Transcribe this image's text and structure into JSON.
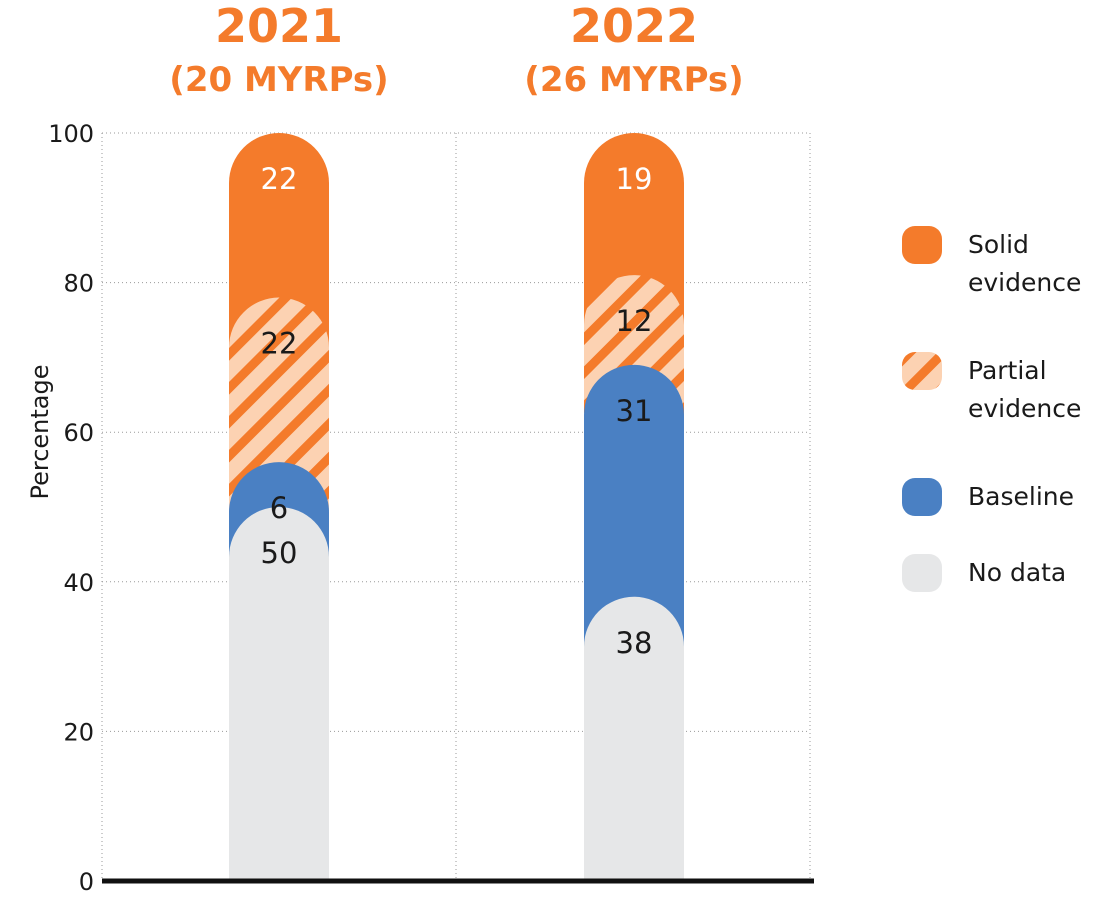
{
  "chart_data": {
    "type": "bar",
    "stacked": true,
    "ylabel": "Percentage",
    "ylim": [
      0,
      100
    ],
    "yticks": [
      0,
      20,
      40,
      60,
      80,
      100
    ],
    "grid": true,
    "legend_position": "right",
    "categories": [
      {
        "year": "2021",
        "subtitle": "(20 MYRPs)"
      },
      {
        "year": "2022",
        "subtitle": "(26 MYRPs)"
      }
    ],
    "series": [
      {
        "key": "nodata",
        "name": "No data",
        "color": "#e6e7e8",
        "label_color": "#1a1a1a",
        "values": [
          50,
          38
        ]
      },
      {
        "key": "baseline",
        "name": "Baseline",
        "color": "#4a80c3",
        "label_color": "#1a1a1a",
        "values": [
          6,
          31
        ]
      },
      {
        "key": "partial",
        "name": "Partial evidence",
        "color": "#f47b2b",
        "label_color": "#1a1a1a",
        "pattern": "hatched",
        "values": [
          22,
          12
        ]
      },
      {
        "key": "solid",
        "name": "Solid evidence",
        "color": "#f47b2b",
        "label_color": "#ffffff",
        "values": [
          22,
          19
        ]
      }
    ],
    "legend": [
      {
        "key": "solid",
        "lines": [
          "Solid",
          "evidence"
        ]
      },
      {
        "key": "partial",
        "lines": [
          "Partial",
          "evidence"
        ]
      },
      {
        "key": "baseline",
        "lines": [
          "Baseline"
        ]
      },
      {
        "key": "nodata",
        "lines": [
          "No data"
        ]
      }
    ]
  }
}
